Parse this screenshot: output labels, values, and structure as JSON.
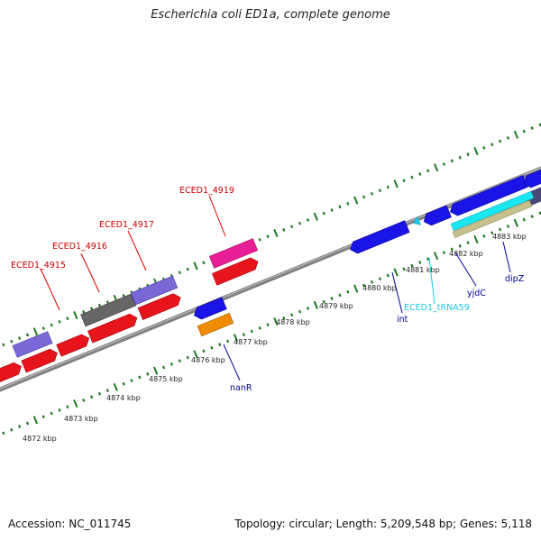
{
  "title": "Escherichia coli ED1a, complete genome",
  "footer": {
    "accession": "Accession: NC_011745",
    "summary": "Topology: circular; Length: 5,209,548 bp; Genes: 5,118"
  },
  "colors": {
    "backbone": "#8c8c8c",
    "tick": "#1e7a1e",
    "cds_forward": "#e8141c",
    "cds_reverse": "#1a14e6",
    "gene_lavender": "#7a68d6",
    "gene_gray": "#666666",
    "gene_pink": "#e81e96",
    "gene_orange": "#f08c00",
    "gene_cyan": "#19e6f0",
    "gene_khaki": "#c8c08c",
    "gene_darkslate": "#4a4a78",
    "label_red": "#c80000",
    "label_blue": "#000096",
    "label_cyan": "#19c8e6"
  },
  "kbp_labels": [
    "4872 kbp",
    "4873 kbp",
    "4874 kbp",
    "4875 kbp",
    "4876 kbp",
    "4877 kbp",
    "4878 kbp",
    "4879 kbp",
    "4880 kbp",
    "4881 kbp",
    "4882 kbp",
    "4883 kbp"
  ],
  "gene_labels": {
    "ECED1_4915": "ECED1_4915",
    "ECED1_4916": "ECED1_4916",
    "ECED1_4917": "ECED1_4917",
    "ECED1_4919": "ECED1_4919",
    "nanR": "nanR",
    "int": "int",
    "ECED1_tRNA59": "ECED1_tRNA59",
    "yjdC": "yjdC",
    "dipZ": "dipZ"
  }
}
